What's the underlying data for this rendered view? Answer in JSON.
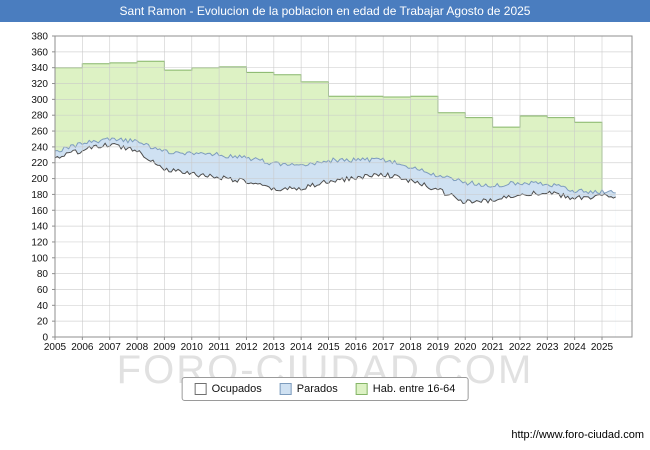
{
  "page": {
    "title": "Sant Ramon - Evolucion de la poblacion en edad de Trabajar Agosto de 2025",
    "watermark": "FORO-CIUDAD.COM",
    "url": "http://www.foro-ciudad.com"
  },
  "legend": {
    "items": [
      {
        "label": "Ocupados",
        "fill": "#ffffff",
        "border": "#707070"
      },
      {
        "label": "Parados",
        "fill": "#cfe1f2",
        "border": "#7d9cbd"
      },
      {
        "label": "Hab. entre 16-64",
        "fill": "#ddf2c4",
        "border": "#85b568"
      }
    ]
  },
  "chart_data": {
    "type": "area",
    "title": "Sant Ramon - Evolucion de la poblacion en edad de Trabajar Agosto de 2025",
    "ylim": [
      0,
      380
    ],
    "y_tick_step": 20,
    "x_end": 2025.58,
    "grid": true,
    "legend_position": "bottom",
    "years": [
      2005,
      2006,
      2007,
      2008,
      2009,
      2010,
      2011,
      2012,
      2013,
      2014,
      2015,
      2016,
      2017,
      2018,
      2019,
      2020,
      2021,
      2022,
      2023,
      2024,
      2025
    ],
    "series": [
      {
        "key": "hab",
        "name": "Hab. entre 16-64",
        "render": "step-area",
        "fill": "#ddf2c4",
        "stroke": "#85b568",
        "values": [
          340,
          345,
          346,
          348,
          337,
          340,
          341,
          334,
          331,
          322,
          304,
          304,
          303,
          304,
          283,
          277,
          265,
          279,
          277,
          271,
          null
        ]
      },
      {
        "key": "parados",
        "name": "Parados",
        "render": "area-stacked-on-ocupados",
        "fill": "#cfe1f2",
        "stroke": "#7d9cbd",
        "values": [
          9,
          8,
          6,
          11,
          22,
          26,
          28,
          30,
          33,
          28,
          27,
          22,
          18,
          17,
          18,
          25,
          19,
          14,
          12,
          10,
          5
        ]
      },
      {
        "key": "ocupados",
        "name": "Ocupados",
        "render": "area",
        "fill": "#ffffff",
        "stroke": "#4d4d4d",
        "values": [
          226,
          236,
          243,
          236,
          212,
          206,
          202,
          196,
          186,
          188,
          196,
          201,
          206,
          197,
          186,
          170,
          172,
          181,
          182,
          175,
          178
        ]
      }
    ]
  }
}
